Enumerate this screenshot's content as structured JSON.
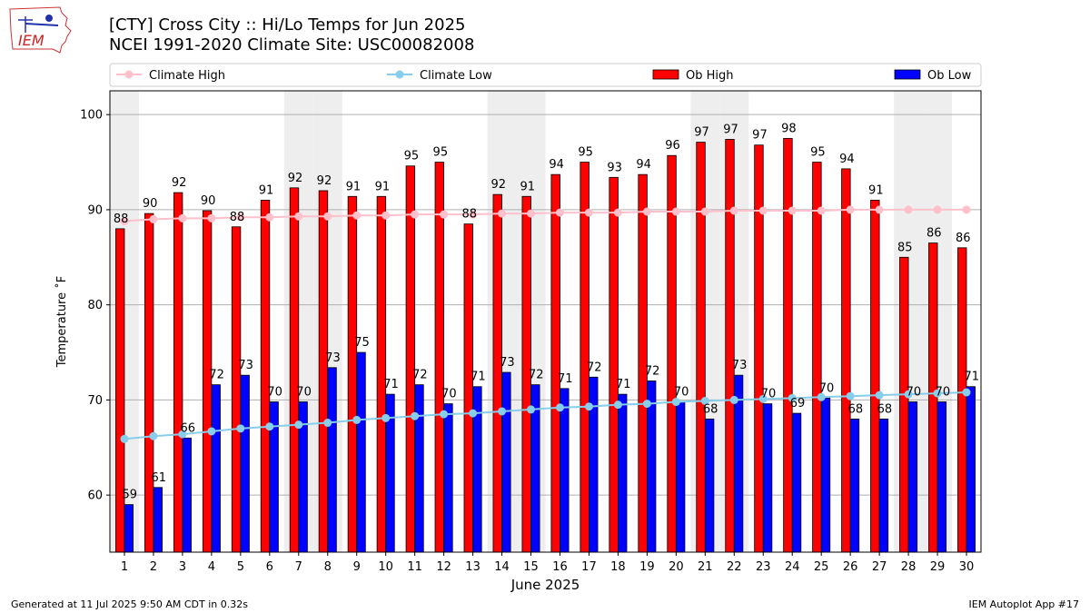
{
  "logo": {
    "text": "IEM"
  },
  "header": {
    "title_line1": "[CTY] Cross City :: Hi/Lo Temps for Jun 2025",
    "title_line2": "NCEI 1991-2020 Climate Site: USC00082008"
  },
  "footer": {
    "left": "Generated at 11 Jul 2025 9:50 AM CDT in 0.32s",
    "right": "IEM Autoplot App #17"
  },
  "colors": {
    "ob_high": "#ff0000",
    "ob_low": "#0000ff",
    "climate_high": "#ffc0cb",
    "climate_low": "#87ceeb",
    "weekend_shade": "#eeeeee"
  },
  "chart_data": {
    "type": "bar",
    "xlabel": "June 2025",
    "ylabel": "Temperature ˚F",
    "ylim": [
      54,
      102.5
    ],
    "yticks": [
      60,
      70,
      80,
      90,
      100
    ],
    "grid": true,
    "legend_position": "top",
    "categories": [
      1,
      2,
      3,
      4,
      5,
      6,
      7,
      8,
      9,
      10,
      11,
      12,
      13,
      14,
      15,
      16,
      17,
      18,
      19,
      20,
      21,
      22,
      23,
      24,
      25,
      26,
      27,
      28,
      29,
      30
    ],
    "weekend_days": [
      1,
      7,
      8,
      14,
      15,
      21,
      22,
      28,
      29
    ],
    "series": [
      {
        "name": "Ob High",
        "kind": "bar",
        "values": [
          88,
          90,
          92,
          90,
          88,
          91,
          92,
          92,
          91,
          91,
          95,
          95,
          88,
          92,
          91,
          94,
          95,
          93,
          94,
          96,
          97,
          97,
          97,
          98,
          95,
          94,
          91,
          85,
          86,
          86
        ],
        "plot_values": [
          88,
          89.6,
          91.8,
          89.9,
          88.2,
          91,
          92.3,
          92,
          91.4,
          91.4,
          94.6,
          95,
          88.5,
          91.6,
          91.4,
          93.7,
          95,
          93.4,
          93.7,
          95.7,
          97.1,
          97.4,
          96.8,
          97.5,
          95,
          94.3,
          91,
          85,
          86.5,
          86
        ]
      },
      {
        "name": "Ob Low",
        "kind": "bar",
        "values": [
          59,
          61,
          66,
          72,
          73,
          70,
          70,
          73,
          75,
          71,
          72,
          70,
          71,
          73,
          72,
          71,
          72,
          71,
          72,
          70,
          68,
          73,
          70,
          69,
          70,
          68,
          68,
          70,
          70,
          71
        ],
        "plot_values": [
          59,
          60.8,
          66,
          71.6,
          72.6,
          69.8,
          69.8,
          73.4,
          75,
          70.6,
          71.6,
          69.6,
          71.4,
          72.9,
          71.6,
          71.2,
          72.4,
          70.6,
          72,
          69.8,
          68,
          72.6,
          69.6,
          68.6,
          70.2,
          68,
          68,
          69.8,
          69.8,
          71.4
        ]
      },
      {
        "name": "Climate High",
        "kind": "line",
        "values": [
          88.8,
          89,
          89.1,
          89.1,
          89.2,
          89.2,
          89.3,
          89.3,
          89.4,
          89.4,
          89.5,
          89.5,
          89.5,
          89.6,
          89.6,
          89.7,
          89.7,
          89.7,
          89.8,
          89.8,
          89.8,
          89.9,
          89.9,
          89.9,
          89.9,
          90,
          90,
          90,
          90,
          90
        ]
      },
      {
        "name": "Climate Low",
        "kind": "line",
        "values": [
          65.9,
          66.2,
          66.4,
          66.7,
          67.0,
          67.2,
          67.4,
          67.6,
          67.9,
          68.1,
          68.3,
          68.5,
          68.6,
          68.8,
          69.0,
          69.2,
          69.3,
          69.5,
          69.6,
          69.8,
          69.9,
          70.0,
          70.1,
          70.2,
          70.3,
          70.4,
          70.5,
          70.6,
          70.7,
          70.8
        ]
      }
    ]
  }
}
